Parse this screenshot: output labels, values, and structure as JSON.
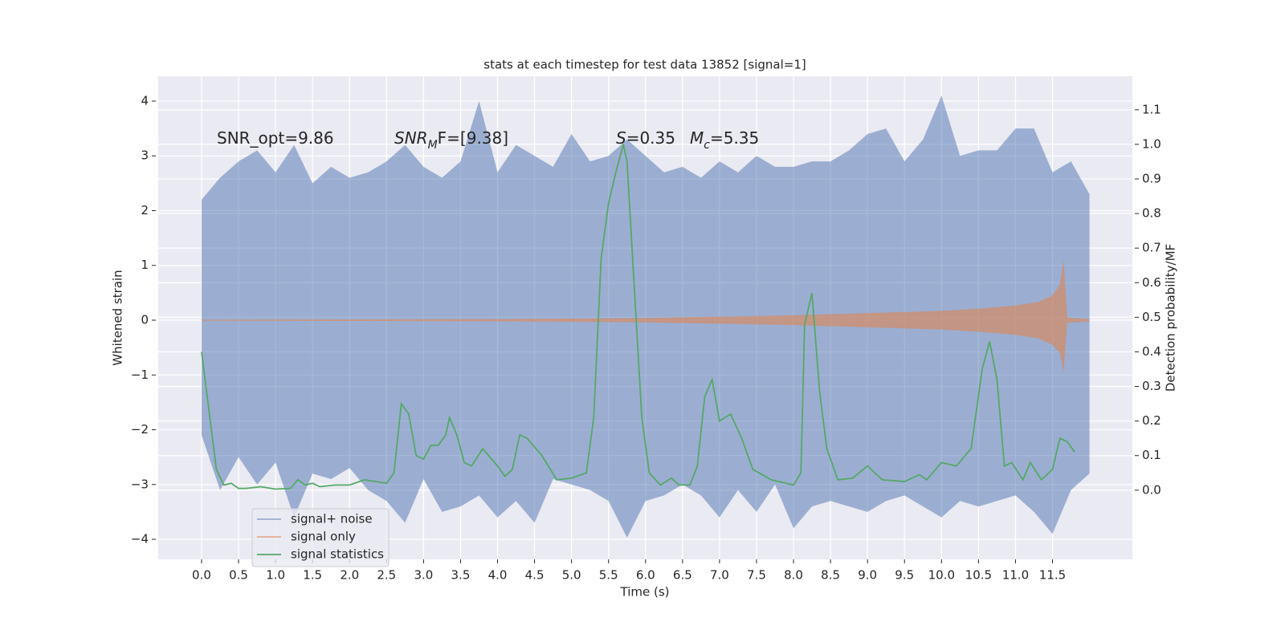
{
  "chart_data": {
    "type": "line",
    "title": "stats at each timestep for test data 13852 [signal=1]",
    "x_label": "Time (s)",
    "y_label": "Whitened strain",
    "y2_label": "Detection probability/MF",
    "annotations": [
      [
        {
          "text": "SNR_opt=9.86"
        }
      ],
      [
        {
          "text": "SNR",
          "italic": true
        },
        {
          "text": "M",
          "italic": true,
          "sub": true
        },
        {
          "text": "F=[9.38]"
        }
      ],
      [
        {
          "text": "S",
          "italic": true
        },
        {
          "text": "=0.35"
        }
      ],
      [
        {
          "text": "M",
          "italic": true
        },
        {
          "text": "c",
          "italic": true,
          "sub": true
        },
        {
          "text": "=5.35"
        }
      ]
    ],
    "xlim": [
      -0.586,
      12.58
    ],
    "ylim": [
      -4.366,
      4.454
    ],
    "y2lim": [
      -0.2,
      1.197
    ],
    "xticks": [
      {
        "value": 0,
        "label": "0.0"
      },
      {
        "value": 0.5,
        "label": "0.5"
      },
      {
        "value": 1,
        "label": "1.0"
      },
      {
        "value": 1.5,
        "label": "1.5"
      },
      {
        "value": 2,
        "label": "2.0"
      },
      {
        "value": 2.5,
        "label": "2.5"
      },
      {
        "value": 3,
        "label": "3.0"
      },
      {
        "value": 3.5,
        "label": "3.5"
      },
      {
        "value": 4,
        "label": "4.0"
      },
      {
        "value": 4.5,
        "label": "4.5"
      },
      {
        "value": 5,
        "label": "5.0"
      },
      {
        "value": 5.5,
        "label": "5.5"
      },
      {
        "value": 6,
        "label": "6.0"
      },
      {
        "value": 6.5,
        "label": "6.5"
      },
      {
        "value": 7,
        "label": "7.0"
      },
      {
        "value": 7.5,
        "label": "7.5"
      },
      {
        "value": 8,
        "label": "8.0"
      },
      {
        "value": 8.5,
        "label": "8.5"
      },
      {
        "value": 9,
        "label": "9.0"
      },
      {
        "value": 9.5,
        "label": "9.5"
      },
      {
        "value": 10,
        "label": "10.0"
      },
      {
        "value": 10.5,
        "label": "10.5"
      },
      {
        "value": 11,
        "label": "11.0"
      },
      {
        "value": 11.5,
        "label": "11.5"
      }
    ],
    "yticks": [
      {
        "value": -4,
        "label": "−4"
      },
      {
        "value": -3,
        "label": "−3"
      },
      {
        "value": -2,
        "label": "−2"
      },
      {
        "value": -1,
        "label": "−1"
      },
      0,
      1,
      2,
      3,
      4
    ],
    "y2ticks": [
      {
        "value": 0,
        "label": "0.0"
      },
      {
        "value": 0.1,
        "label": "0.1"
      },
      {
        "value": 0.2,
        "label": "0.2"
      },
      {
        "value": 0.3,
        "label": "0.3"
      },
      {
        "value": 0.4,
        "label": "0.4"
      },
      {
        "value": 0.5,
        "label": "0.5"
      },
      {
        "value": 0.6,
        "label": "0.6"
      },
      {
        "value": 0.7,
        "label": "0.7"
      },
      {
        "value": 0.8,
        "label": "0.8"
      },
      {
        "value": 0.9,
        "label": "0.9"
      },
      {
        "value": 1,
        "label": "1.0"
      },
      {
        "value": 1.1,
        "label": "1.1"
      }
    ],
    "grid": true,
    "legend": "lower left",
    "series": [
      {
        "name": "signal+ noise",
        "color": "#4c72b0",
        "opacity": 0.5,
        "x": [
          0,
          0.25,
          0.5,
          0.75,
          1,
          1.25,
          1.5,
          1.75,
          2,
          2.25,
          2.5,
          2.75,
          3,
          3.25,
          3.5,
          3.75,
          4,
          4.25,
          4.5,
          4.75,
          5,
          5.25,
          5.5,
          5.75,
          6,
          6.25,
          6.5,
          6.75,
          7,
          7.25,
          7.5,
          7.75,
          8,
          8.25,
          8.5,
          8.75,
          9,
          9.25,
          9.5,
          9.75,
          10,
          10.25,
          10.5,
          10.75,
          11,
          11.25,
          11.5,
          11.75,
          12
        ],
        "upper": [
          2.2,
          2.6,
          2.9,
          3.1,
          2.7,
          3.2,
          2.5,
          2.8,
          2.6,
          2.7,
          2.9,
          3.2,
          2.8,
          2.6,
          2.9,
          4.0,
          2.7,
          3.2,
          3.0,
          2.8,
          3.4,
          2.9,
          3.0,
          3.3,
          3.0,
          2.7,
          2.8,
          2.6,
          2.9,
          2.7,
          3.0,
          2.8,
          2.8,
          2.9,
          2.9,
          3.1,
          3.4,
          3.5,
          2.9,
          3.3,
          4.1,
          3.0,
          3.1,
          3.1,
          3.5,
          3.5,
          2.7,
          2.9,
          2.3
        ],
        "lower": [
          -2.1,
          -3.1,
          -2.5,
          -3.0,
          -2.6,
          -3.6,
          -2.8,
          -2.9,
          -2.7,
          -3.1,
          -3.3,
          -3.7,
          -2.9,
          -3.5,
          -3.4,
          -3.2,
          -3.6,
          -3.3,
          -3.7,
          -2.9,
          -3.0,
          -3.1,
          -3.3,
          -3.97,
          -3.3,
          -3.2,
          -3.0,
          -3.2,
          -3.6,
          -3.1,
          -3.5,
          -3.0,
          -3.8,
          -3.4,
          -3.3,
          -3.4,
          -3.5,
          -3.3,
          -3.2,
          -3.4,
          -3.6,
          -3.3,
          -3.4,
          -3.3,
          -3.2,
          -3.5,
          -3.9,
          -3.1,
          -2.8
        ]
      },
      {
        "name": "signal only",
        "color": "#dd8452",
        "opacity": 0.6,
        "x": [
          0,
          2,
          4,
          6,
          8,
          9,
          10,
          10.5,
          11,
          11.3,
          11.5,
          11.6,
          11.65,
          11.7,
          12
        ],
        "upper": [
          0.01,
          0.015,
          0.02,
          0.04,
          0.09,
          0.13,
          0.17,
          0.21,
          0.27,
          0.33,
          0.45,
          0.65,
          1.1,
          0.05,
          0.02
        ],
        "lower": [
          -0.01,
          -0.015,
          -0.02,
          -0.04,
          -0.09,
          -0.13,
          -0.17,
          -0.21,
          -0.27,
          -0.33,
          -0.45,
          -0.6,
          -0.95,
          -0.05,
          -0.02
        ]
      },
      {
        "name": "signal statistics",
        "color": "#55a868",
        "axis": "y2",
        "x": [
          0,
          0.1,
          0.2,
          0.3,
          0.4,
          0.5,
          0.6,
          0.8,
          1,
          1.2,
          1.3,
          1.4,
          1.5,
          1.6,
          1.8,
          2,
          2.2,
          2.5,
          2.6,
          2.7,
          2.8,
          2.9,
          3,
          3.1,
          3.2,
          3.3,
          3.35,
          3.45,
          3.55,
          3.65,
          3.8,
          4,
          4.1,
          4.2,
          4.3,
          4.4,
          4.6,
          4.8,
          5,
          5.2,
          5.3,
          5.4,
          5.5,
          5.6,
          5.7,
          5.75,
          5.85,
          5.95,
          6.05,
          6.2,
          6.35,
          6.45,
          6.6,
          6.7,
          6.8,
          6.9,
          7,
          7.15,
          7.3,
          7.45,
          7.7,
          8,
          8.1,
          8.15,
          8.25,
          8.35,
          8.45,
          8.6,
          8.8,
          9,
          9.2,
          9.5,
          9.7,
          9.8,
          10,
          10.2,
          10.4,
          10.55,
          10.65,
          10.75,
          10.85,
          10.95,
          11.1,
          11.2,
          11.35,
          11.5,
          11.6,
          11.7,
          11.8
        ],
        "values": [
          0.4,
          0.23,
          0.06,
          0.015,
          0.02,
          0.005,
          0.005,
          0.01,
          0.003,
          0.005,
          0.03,
          0.015,
          0.02,
          0.01,
          0.015,
          0.015,
          0.03,
          0.02,
          0.05,
          0.25,
          0.22,
          0.1,
          0.09,
          0.13,
          0.13,
          0.16,
          0.21,
          0.16,
          0.08,
          0.07,
          0.12,
          0.07,
          0.04,
          0.06,
          0.16,
          0.15,
          0.1,
          0.03,
          0.035,
          0.05,
          0.21,
          0.67,
          0.83,
          0.92,
          1.0,
          0.95,
          0.58,
          0.21,
          0.05,
          0.015,
          0.035,
          0.015,
          0.015,
          0.07,
          0.27,
          0.32,
          0.2,
          0.22,
          0.15,
          0.06,
          0.03,
          0.015,
          0.05,
          0.48,
          0.57,
          0.29,
          0.12,
          0.03,
          0.035,
          0.07,
          0.03,
          0.025,
          0.045,
          0.03,
          0.08,
          0.07,
          0.12,
          0.35,
          0.43,
          0.32,
          0.07,
          0.08,
          0.03,
          0.08,
          0.03,
          0.06,
          0.15,
          0.14,
          0.11
        ]
      }
    ]
  }
}
